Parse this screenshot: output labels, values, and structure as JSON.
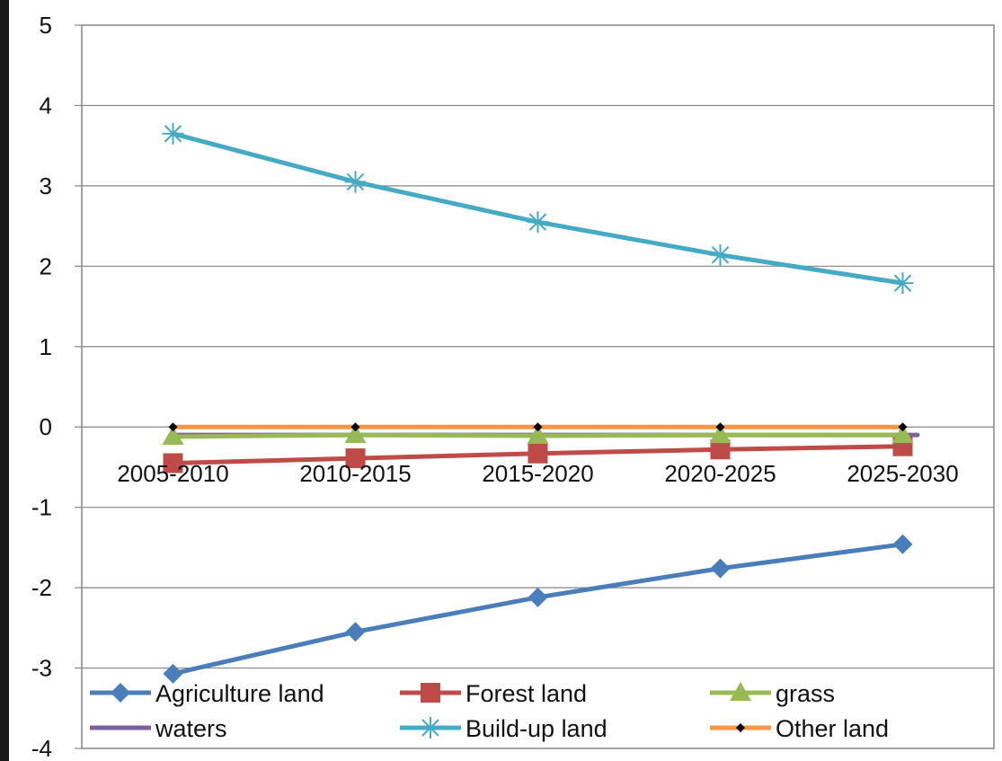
{
  "chart_data": {
    "type": "line",
    "title": "",
    "xlabel": "",
    "ylabel": "",
    "categories": [
      "2005-2010",
      "2010-2015",
      "2015-2020",
      "2020-2025",
      "2025-2030"
    ],
    "ylim": [
      -4,
      5
    ],
    "yticks": [
      5,
      4,
      3,
      2,
      1,
      0,
      -1,
      -2,
      -3,
      -4
    ],
    "grid": true,
    "legend": "bottom",
    "series": [
      {
        "name": "Agriculture  land",
        "values": [
          -3.07,
          -2.55,
          -2.12,
          -1.76,
          -1.46
        ],
        "color": "#4a7ebb",
        "marker": "diamond"
      },
      {
        "name": "Forest land",
        "values": [
          -0.45,
          -0.39,
          -0.33,
          -0.28,
          -0.24
        ],
        "color": "#be4b48",
        "marker": "square"
      },
      {
        "name": "grass",
        "values": [
          -0.12,
          -0.1,
          -0.11,
          -0.1,
          -0.1
        ],
        "color": "#98b954",
        "marker": "triangle"
      },
      {
        "name": "waters",
        "values": [
          -0.1,
          -0.1,
          -0.1,
          -0.1,
          -0.1
        ],
        "color": "#7d60a0",
        "marker": "none"
      },
      {
        "name": "Build-up land",
        "values": [
          3.65,
          3.05,
          2.55,
          2.14,
          1.79
        ],
        "color": "#46aac5",
        "marker": "star"
      },
      {
        "name": "Other land",
        "values": [
          0,
          0,
          0,
          0,
          0
        ],
        "color": "#f79646",
        "marker": "smalldiamond"
      }
    ]
  }
}
